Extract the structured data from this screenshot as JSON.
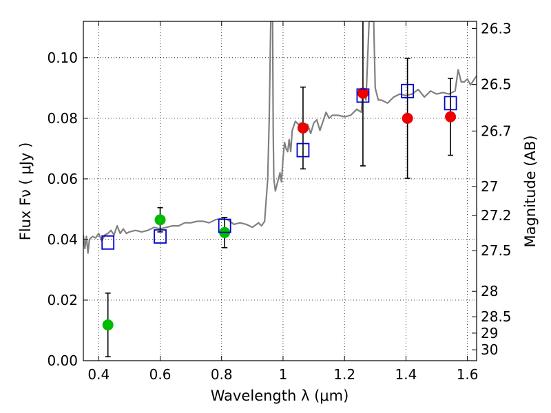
{
  "chart_data": {
    "type": "scatter",
    "xlabel": "Wavelength  λ (μm)",
    "ylabel": "Flux  Fν  ( μJy )",
    "y2label": "Magnitude (AB)",
    "xlim": [
      0.35,
      1.63
    ],
    "ylim": [
      0.0,
      0.112
    ],
    "x_ticks": [
      0.4,
      0.6,
      0.8,
      1.0,
      1.2,
      1.4,
      1.6
    ],
    "x_tick_labels": [
      "0.4",
      "0.6",
      "0.8",
      "1",
      "1.2",
      "1.4",
      "1.6"
    ],
    "y_ticks": [
      0.0,
      0.02,
      0.04,
      0.06,
      0.08,
      0.1
    ],
    "y_tick_labels": [
      "0.00",
      "0.02",
      "0.04",
      "0.06",
      "0.08",
      "0.10"
    ],
    "y2_ticks": [
      {
        "label": "26.3",
        "flux": 0.1096
      },
      {
        "label": "26.5",
        "flux": 0.0912
      },
      {
        "label": "26.7",
        "flux": 0.0758
      },
      {
        "label": "27",
        "flux": 0.0575
      },
      {
        "label": "27.2",
        "flux": 0.0479
      },
      {
        "label": "27.5",
        "flux": 0.0363
      },
      {
        "label": "28",
        "flux": 0.0229
      },
      {
        "label": "28.5",
        "flux": 0.0145
      },
      {
        "label": "29",
        "flux": 0.0091
      },
      {
        "label": "30",
        "flux": 0.0036
      }
    ],
    "grid": true,
    "grid_style": "dotted",
    "colors": {
      "spectrum": "#808080",
      "green_points": "#00bb00",
      "red_points": "#ee0000",
      "model_squares": "#0000cc",
      "error_bars": "#000000"
    },
    "series": [
      {
        "kind": "line",
        "color": "#808080",
        "x": [
          0.35,
          0.355,
          0.36,
          0.365,
          0.37,
          0.38,
          0.39,
          0.4,
          0.41,
          0.42,
          0.43,
          0.44,
          0.45,
          0.46,
          0.47,
          0.48,
          0.49,
          0.5,
          0.52,
          0.54,
          0.56,
          0.58,
          0.6,
          0.62,
          0.64,
          0.66,
          0.68,
          0.7,
          0.72,
          0.74,
          0.76,
          0.78,
          0.8,
          0.82,
          0.84,
          0.86,
          0.88,
          0.9,
          0.92,
          0.93,
          0.94,
          0.95,
          0.955,
          0.96,
          0.962,
          0.964,
          0.966,
          0.968,
          0.97,
          0.975,
          0.98,
          0.985,
          0.99,
          0.995,
          1.0,
          1.005,
          1.01,
          1.015,
          1.02,
          1.025,
          1.03,
          1.04,
          1.05,
          1.06,
          1.07,
          1.08,
          1.09,
          1.1,
          1.11,
          1.12,
          1.13,
          1.14,
          1.15,
          1.16,
          1.18,
          1.2,
          1.22,
          1.24,
          1.255,
          1.26,
          1.27,
          1.28,
          1.29,
          1.295,
          1.3,
          1.305,
          1.31,
          1.32,
          1.34,
          1.36,
          1.38,
          1.4,
          1.42,
          1.44,
          1.46,
          1.48,
          1.5,
          1.52,
          1.54,
          1.56,
          1.57,
          1.58,
          1.59,
          1.6,
          1.61,
          1.62,
          1.63
        ],
        "values": [
          0.0415,
          0.037,
          0.041,
          0.0355,
          0.04,
          0.041,
          0.0405,
          0.042,
          0.0395,
          0.0415,
          0.042,
          0.043,
          0.0415,
          0.0445,
          0.042,
          0.0435,
          0.042,
          0.0425,
          0.043,
          0.0425,
          0.043,
          0.044,
          0.0435,
          0.044,
          0.0445,
          0.0445,
          0.0455,
          0.0455,
          0.046,
          0.046,
          0.0455,
          0.0465,
          0.047,
          0.0465,
          0.045,
          0.0455,
          0.045,
          0.044,
          0.0455,
          0.0445,
          0.046,
          0.06,
          0.08,
          0.112,
          0.112,
          0.112,
          0.112,
          0.075,
          0.06,
          0.056,
          0.058,
          0.06,
          0.062,
          0.059,
          0.067,
          0.072,
          0.07,
          0.069,
          0.073,
          0.069,
          0.076,
          0.079,
          0.078,
          0.0785,
          0.0775,
          0.078,
          0.075,
          0.0785,
          0.0795,
          0.076,
          0.079,
          0.082,
          0.08,
          0.081,
          0.081,
          0.0805,
          0.081,
          0.083,
          0.082,
          0.09,
          0.086,
          0.112,
          0.112,
          0.112,
          0.09,
          0.088,
          0.086,
          0.086,
          0.085,
          0.087,
          0.088,
          0.0875,
          0.088,
          0.0895,
          0.087,
          0.089,
          0.088,
          0.0885,
          0.088,
          0.089,
          0.096,
          0.092,
          0.092,
          0.093,
          0.091,
          0.0925,
          0.094
        ]
      },
      {
        "kind": "scatter",
        "marker": "circle",
        "color": "#00bb00",
        "x": [
          0.43,
          0.6,
          0.81
        ],
        "values": [
          0.0118,
          0.0465,
          0.0423
        ],
        "err": [
          0.0105,
          0.004,
          0.005
        ]
      },
      {
        "kind": "scatter",
        "marker": "circle",
        "color": "#ee0000",
        "x": [
          1.065,
          1.26,
          1.405,
          1.545
        ],
        "values": [
          0.0768,
          0.0883,
          0.08,
          0.0805
        ],
        "err": [
          0.0135,
          0.024,
          0.0198,
          0.0127
        ]
      },
      {
        "kind": "scatter",
        "marker": "square",
        "color": "#0000cc",
        "x": [
          0.43,
          0.6,
          0.81,
          1.065,
          1.26,
          1.405,
          1.545
        ],
        "values": [
          0.039,
          0.041,
          0.0445,
          0.0695,
          0.0875,
          0.089,
          0.085
        ]
      }
    ]
  }
}
